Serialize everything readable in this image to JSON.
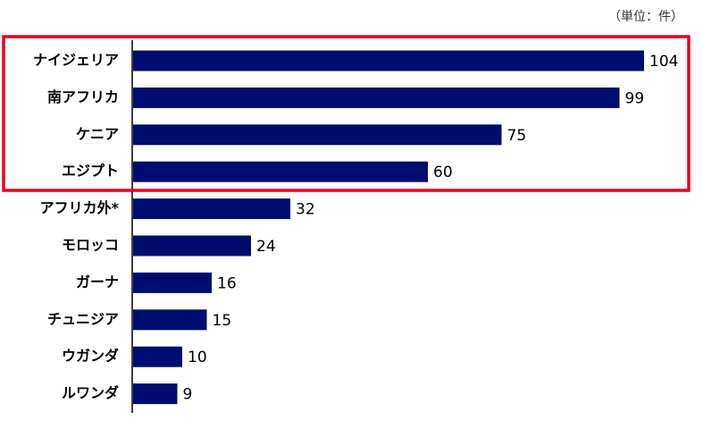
{
  "chart_data": {
    "type": "bar",
    "orientation": "horizontal",
    "unit_note": "（単位：件）",
    "categories": [
      "ナイジェリア",
      "南アフリカ",
      "ケニア",
      "エジプト",
      "アフリカ外*",
      "モロッコ",
      "ガーナ",
      "チュニジア",
      "ウガンダ",
      "ルワンダ"
    ],
    "values": [
      104,
      99,
      75,
      60,
      32,
      24,
      16,
      15,
      10,
      9
    ],
    "color": "#000c6e"
  }
}
